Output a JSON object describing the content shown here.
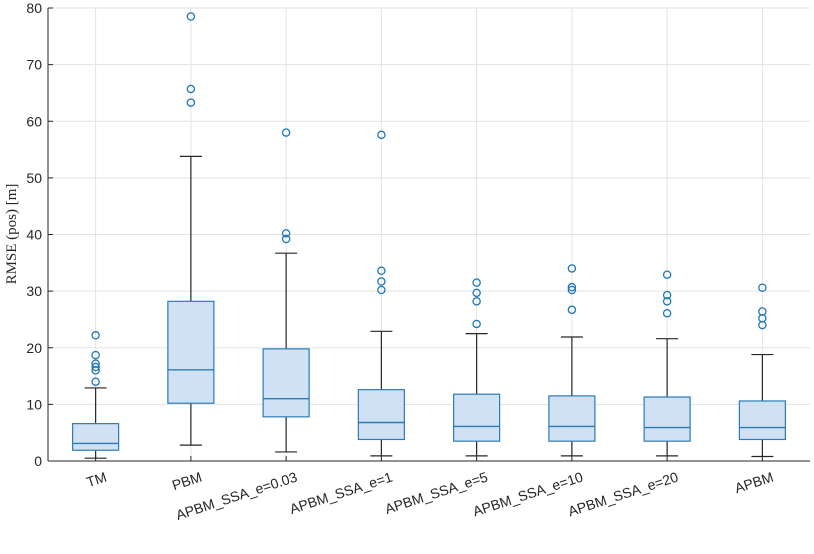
{
  "chart_data": {
    "type": "box",
    "title": "",
    "xlabel": "",
    "ylabel": "RMSE (pos) [m]",
    "ylim": [
      0,
      80
    ],
    "yticks": [
      0,
      10,
      20,
      30,
      40,
      50,
      60,
      70,
      80
    ],
    "grid": true,
    "colors": {
      "box_fill": "#cfe1f2",
      "box_edge": "#2b7bba",
      "whisker": "#262626",
      "outlier": "#1f77b4"
    },
    "categories": [
      "TM",
      "PBM",
      "APBM_SSA_e=0.03",
      "APBM_SSA_e=1",
      "APBM_SSA_e=5",
      "APBM_SSA_e=10",
      "APBM_SSA_e=20",
      "APBM"
    ],
    "boxes": [
      {
        "whisker_low": 0.5,
        "q1": 1.9,
        "median": 3.1,
        "q3": 6.6,
        "whisker_high": 12.9,
        "outliers": [
          14.0,
          16.0,
          16.6,
          17.2,
          18.7,
          22.2
        ]
      },
      {
        "whisker_low": 2.8,
        "q1": 10.2,
        "median": 16.1,
        "q3": 28.2,
        "whisker_high": 53.8,
        "outliers": [
          63.3,
          65.7,
          78.5
        ]
      },
      {
        "whisker_low": 1.6,
        "q1": 7.8,
        "median": 11.0,
        "q3": 19.8,
        "whisker_high": 36.7,
        "outliers": [
          39.2,
          40.2,
          58.0
        ]
      },
      {
        "whisker_low": 0.9,
        "q1": 3.8,
        "median": 6.8,
        "q3": 12.6,
        "whisker_high": 22.9,
        "outliers": [
          30.2,
          31.7,
          33.6,
          57.6
        ]
      },
      {
        "whisker_low": 0.9,
        "q1": 3.5,
        "median": 6.1,
        "q3": 11.8,
        "whisker_high": 22.5,
        "outliers": [
          24.2,
          28.2,
          29.7,
          31.5
        ]
      },
      {
        "whisker_low": 0.9,
        "q1": 3.5,
        "median": 6.1,
        "q3": 11.5,
        "whisker_high": 21.9,
        "outliers": [
          26.7,
          30.2,
          30.7,
          34.0
        ]
      },
      {
        "whisker_low": 0.9,
        "q1": 3.5,
        "median": 5.9,
        "q3": 11.3,
        "whisker_high": 21.6,
        "outliers": [
          26.1,
          28.2,
          29.3,
          32.9
        ]
      },
      {
        "whisker_low": 0.8,
        "q1": 3.8,
        "median": 5.9,
        "q3": 10.6,
        "whisker_high": 18.8,
        "outliers": [
          24.0,
          25.2,
          26.4,
          30.6
        ]
      }
    ]
  }
}
